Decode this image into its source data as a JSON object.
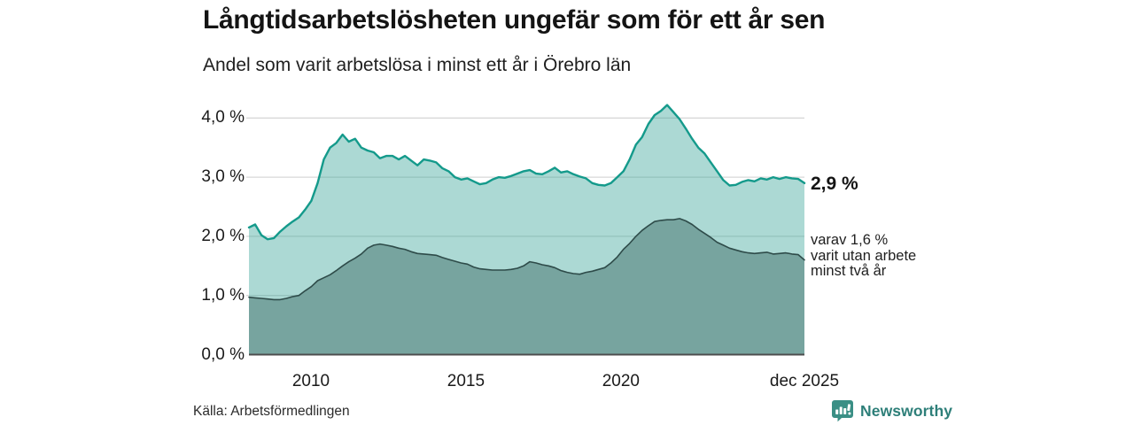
{
  "header": {
    "title": "Långtidsarbetslösheten ungefär som för ett år sen",
    "subtitle": "Andel som varit arbetslösa i minst ett år i Örebro län"
  },
  "chart_data": {
    "type": "area",
    "title": "Långtidsarbetslösheten ungefär som för ett år sen",
    "subtitle": "Andel som varit arbetslösa i minst ett år i Örebro län",
    "x_start": 2008.0,
    "x_end": 2025.92,
    "ylim": [
      0,
      4.4
    ],
    "grid": true,
    "grid_color": "#d9d9d9",
    "axis_color": "#4d4d4d",
    "y_ticks": [
      {
        "value": 4,
        "label": "4,0 %"
      },
      {
        "value": 3,
        "label": "3,0 %"
      },
      {
        "value": 2,
        "label": "2,0 %"
      },
      {
        "value": 1,
        "label": "1,0 %"
      },
      {
        "value": 0,
        "label": "0,0 %"
      }
    ],
    "x_ticks": [
      {
        "value": 2010,
        "label": "2010"
      },
      {
        "value": 2015,
        "label": "2015"
      },
      {
        "value": 2020,
        "label": "2020"
      },
      {
        "value": 2025.92,
        "label": "dec 2025"
      }
    ],
    "series": [
      {
        "name": "arbetslosa-minst-ett-ar",
        "end_label": "2,9 %",
        "line_color": "#149a8b",
        "fill_color": "rgba(42,157,143,0.39)",
        "line_width": 2.4,
        "values": [
          2.15,
          2.2,
          2.02,
          1.95,
          1.97,
          2.08,
          2.17,
          2.25,
          2.32,
          2.45,
          2.6,
          2.9,
          3.3,
          3.5,
          3.58,
          3.72,
          3.6,
          3.65,
          3.5,
          3.45,
          3.42,
          3.32,
          3.36,
          3.36,
          3.3,
          3.36,
          3.28,
          3.2,
          3.3,
          3.28,
          3.25,
          3.15,
          3.1,
          3.0,
          2.96,
          2.98,
          2.93,
          2.88,
          2.9,
          2.96,
          3.0,
          2.99,
          3.02,
          3.06,
          3.1,
          3.12,
          3.06,
          3.05,
          3.1,
          3.16,
          3.08,
          3.1,
          3.05,
          3.01,
          2.98,
          2.9,
          2.87,
          2.86,
          2.9,
          3.0,
          3.1,
          3.3,
          3.55,
          3.68,
          3.9,
          4.05,
          4.12,
          4.22,
          4.1,
          3.98,
          3.82,
          3.65,
          3.5,
          3.4,
          3.25,
          3.1,
          2.95,
          2.86,
          2.87,
          2.92,
          2.95,
          2.93,
          2.98,
          2.96,
          3.0,
          2.97,
          3.0,
          2.98,
          2.97,
          2.9
        ]
      },
      {
        "name": "utan-arbete-minst-tva-ar",
        "end_label": "varav 1,6 %\nvarit utan arbete\nminst två år",
        "line_color": "#2e4b49",
        "fill_color": "#77a49f",
        "line_width": 1.6,
        "values": [
          0.97,
          0.96,
          0.95,
          0.94,
          0.93,
          0.93,
          0.95,
          0.98,
          1.0,
          1.08,
          1.15,
          1.25,
          1.3,
          1.35,
          1.42,
          1.5,
          1.57,
          1.63,
          1.7,
          1.8,
          1.85,
          1.87,
          1.85,
          1.83,
          1.8,
          1.78,
          1.74,
          1.71,
          1.7,
          1.69,
          1.68,
          1.64,
          1.61,
          1.58,
          1.55,
          1.53,
          1.48,
          1.45,
          1.44,
          1.43,
          1.43,
          1.43,
          1.44,
          1.46,
          1.5,
          1.57,
          1.55,
          1.52,
          1.5,
          1.47,
          1.42,
          1.39,
          1.37,
          1.36,
          1.39,
          1.41,
          1.44,
          1.47,
          1.55,
          1.65,
          1.78,
          1.88,
          2.0,
          2.1,
          2.18,
          2.25,
          2.27,
          2.28,
          2.28,
          2.3,
          2.26,
          2.2,
          2.12,
          2.05,
          1.98,
          1.9,
          1.85,
          1.8,
          1.77,
          1.74,
          1.72,
          1.71,
          1.72,
          1.73,
          1.7,
          1.71,
          1.72,
          1.7,
          1.69,
          1.6
        ]
      }
    ]
  },
  "footer": {
    "source": "Källa: Arbetsförmedlingen",
    "brand": "Newsworthy",
    "brand_color": "#2e7f79"
  }
}
